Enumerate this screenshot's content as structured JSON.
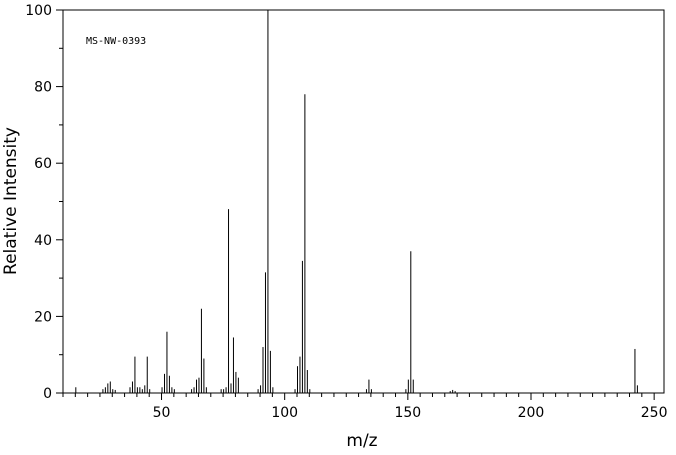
{
  "chart_data": {
    "type": "bar",
    "annotation": "MS-NW-0393",
    "xlabel": "m/z",
    "ylabel": "Relative Intensity",
    "xlim": [
      10,
      254
    ],
    "ylim": [
      0,
      100
    ],
    "x_ticks": [
      50,
      100,
      150,
      200,
      250
    ],
    "y_ticks": [
      0,
      20,
      40,
      60,
      80,
      100
    ],
    "x_minor_step": 5,
    "y_minor_step": 10,
    "grid": false,
    "legend": "none",
    "x": [
      15,
      26,
      27,
      28,
      29,
      30,
      31,
      37,
      38,
      39,
      40,
      41,
      42,
      43,
      44,
      45,
      50,
      51,
      52,
      53,
      54,
      55,
      62,
      63,
      64,
      65,
      66,
      67,
      68,
      74,
      75,
      76,
      77,
      78,
      79,
      80,
      81,
      89,
      90,
      91,
      92,
      93,
      94,
      95,
      104,
      105,
      106,
      107,
      108,
      109,
      110,
      133,
      134,
      135,
      149,
      150,
      151,
      152,
      167,
      168,
      169,
      242,
      243
    ],
    "y": [
      1.5,
      1.0,
      1.5,
      2.5,
      3.0,
      1.0,
      0.8,
      1.5,
      3.0,
      9.5,
      1.5,
      1.5,
      1.0,
      2.0,
      9.5,
      1.0,
      1.5,
      5.0,
      16.0,
      4.5,
      1.5,
      1.0,
      1.0,
      1.5,
      3.5,
      4.0,
      22.0,
      9.0,
      1.5,
      1.0,
      1.0,
      1.5,
      48.0,
      2.5,
      14.5,
      5.5,
      4.0,
      1.0,
      2.0,
      12.0,
      31.5,
      100.0,
      11.0,
      1.5,
      1.0,
      7.0,
      9.5,
      34.5,
      78.0,
      6.0,
      1.0,
      1.0,
      3.5,
      1.0,
      1.0,
      3.5,
      37.0,
      3.5,
      0.5,
      0.8,
      0.5,
      11.5,
      2.0
    ]
  }
}
